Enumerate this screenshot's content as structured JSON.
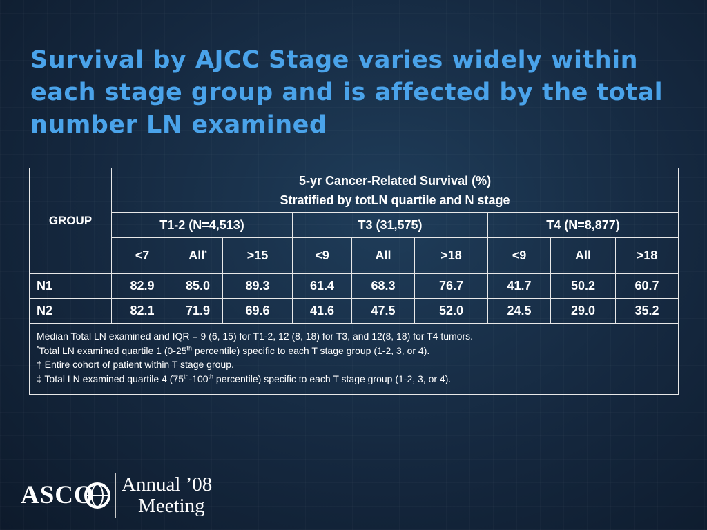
{
  "title": "Survival by AJCC Stage varies widely within each stage group and is affected by the total number LN examined",
  "table": {
    "group_header": "GROUP",
    "header_line1": "5-yr Cancer-Related Survival  (%)",
    "header_line2": "Stratified by totLN quartile and N stage",
    "t_groups": [
      "T1-2 (N=4,513)",
      "T3 (31,575)",
      "T4 (N=8,877)"
    ],
    "subheaders": [
      "<7",
      "All",
      ">15",
      "<9",
      "All",
      ">18",
      "<9",
      "All",
      ">18"
    ],
    "subheader_all_mark": "*",
    "rows": [
      {
        "label": "N1",
        "values": [
          "82.9",
          "85.0",
          "89.3",
          "61.4",
          "68.3",
          "76.7",
          "41.7",
          "50.2",
          "60.7"
        ]
      },
      {
        "label": "N2",
        "values": [
          "82.1",
          "71.9",
          "69.6",
          "41.6",
          "47.5",
          "52.0",
          "24.5",
          "29.0",
          "35.2"
        ]
      }
    ],
    "notes": {
      "line1": "Median Total LN examined and IQR = 9 (6, 15) for T1-2, 12 (8, 18) for T3, and 12(8, 18) for T4 tumors.",
      "line2_mark": "*",
      "line2_a": "Total LN examined quartile 1 (0-25",
      "line2_sup": "th",
      "line2_b": " percentile) specific to each T stage group (1-2, 3, or 4).",
      "line3": "† Entire cohort of patient within T stage group.",
      "line4_a": "‡ Total LN examined quartile 4 (75",
      "line4_sup1": "th",
      "line4_mid": "-100",
      "line4_sup2": "th",
      "line4_b": " percentile) specific to each T stage group (1-2, 3, or 4)."
    }
  },
  "logo": {
    "org": "ASCO",
    "meeting_line1": "Annual ’08",
    "meeting_line2": "Meeting"
  }
}
